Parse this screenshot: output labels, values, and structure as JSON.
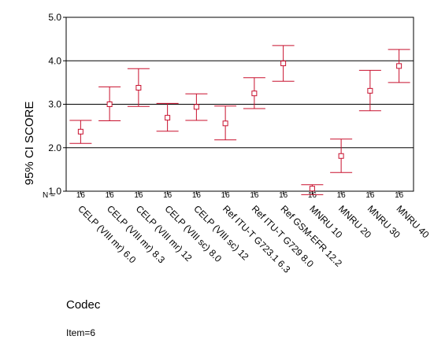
{
  "chart_data": {
    "type": "errorbar",
    "title": "",
    "xlabel": "Codec",
    "ylabel": "95% CI SCORE",
    "footnote": "Item=6",
    "n_prefix": "N =",
    "ylim": [
      1.0,
      5.0
    ],
    "yticks": [
      "1.0",
      "2.0",
      "3.0",
      "4.0",
      "5.0"
    ],
    "grid": "horizontal-major",
    "categories": [
      "CELP (VIII mr) 6.0",
      "CELP (VIII mr) 8.3",
      "CELP (VIII mr) 12",
      "CELP (VIII sc) 8.0",
      "CELP (VIII sc) 12",
      "Ref ITU-T G723.1 6.3",
      "Ref ITU-T G729 8.0",
      "Ref GSM-EFR 12.2",
      "MNRU 10",
      "MNRU 20",
      "MNRU 30",
      "MNRU 40"
    ],
    "n": [
      "16",
      "16",
      "16",
      "16",
      "16",
      "16",
      "16",
      "16",
      "16",
      "16",
      "16",
      "16"
    ],
    "mean": [
      2.37,
      3.0,
      3.38,
      2.69,
      2.94,
      2.56,
      3.25,
      3.94,
      1.06,
      1.81,
      3.31,
      3.88
    ],
    "lower": [
      2.1,
      2.62,
      2.95,
      2.38,
      2.63,
      2.18,
      2.9,
      3.53,
      0.92,
      1.43,
      2.85,
      3.5
    ],
    "upper": [
      2.63,
      3.4,
      3.82,
      3.02,
      3.24,
      2.96,
      3.61,
      4.35,
      1.15,
      2.2,
      3.78,
      4.26
    ],
    "color": "#c8102e"
  }
}
